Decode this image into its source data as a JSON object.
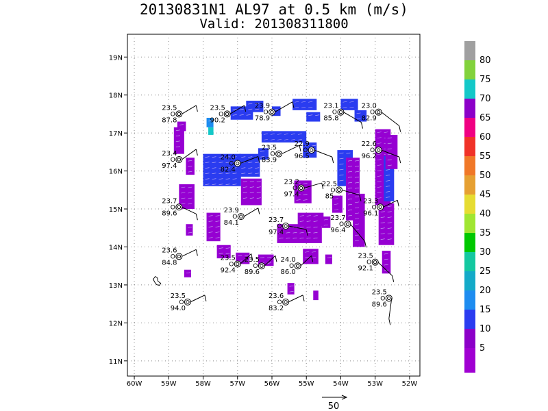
{
  "title_line1": "20130831N1 AL97 at 0.5 km (m/s)",
  "title_line2": "Valid: 201308311800",
  "map": {
    "lon_range": [
      -60.2,
      -51.7
    ],
    "lat_range": [
      10.6,
      19.6
    ],
    "lon_ticks": [
      {
        "v": -60,
        "label": "60W"
      },
      {
        "v": -59,
        "label": "59W"
      },
      {
        "v": -58,
        "label": "58W"
      },
      {
        "v": -57,
        "label": "57W"
      },
      {
        "v": -56,
        "label": "56W"
      },
      {
        "v": -55,
        "label": "55W"
      },
      {
        "v": -54,
        "label": "54W"
      },
      {
        "v": -53,
        "label": "53W"
      },
      {
        "v": -52,
        "label": "52W"
      }
    ],
    "lat_ticks": [
      {
        "v": 11,
        "label": "11N"
      },
      {
        "v": 12,
        "label": "12N"
      },
      {
        "v": 13,
        "label": "13N"
      },
      {
        "v": 14,
        "label": "14N"
      },
      {
        "v": 15,
        "label": "15N"
      },
      {
        "v": 16,
        "label": "16N"
      },
      {
        "v": 17,
        "label": "17N"
      },
      {
        "v": 18,
        "label": "18N"
      },
      {
        "v": 19,
        "label": "19N"
      }
    ],
    "grid": "dotted",
    "colors": {
      "purple": "#9600d2",
      "blue": "#2a3cf0",
      "lightblue": "#1e8cf0",
      "cyan": "#14c8c8"
    },
    "wind_cells": [
      {
        "lon": -57.2,
        "lat": 17.35,
        "w": 0.65,
        "h": 0.35,
        "c": "blue"
      },
      {
        "lon": -56.75,
        "lat": 17.55,
        "w": 0.5,
        "h": 0.3,
        "c": "blue"
      },
      {
        "lon": -56.0,
        "lat": 17.45,
        "w": 0.25,
        "h": 0.25,
        "c": "blue"
      },
      {
        "lon": -55.4,
        "lat": 17.6,
        "w": 0.7,
        "h": 0.3,
        "c": "blue"
      },
      {
        "lon": -55.0,
        "lat": 17.3,
        "w": 0.4,
        "h": 0.25,
        "c": "blue"
      },
      {
        "lon": -54.0,
        "lat": 17.6,
        "w": 0.5,
        "h": 0.3,
        "c": "blue"
      },
      {
        "lon": -53.6,
        "lat": 17.3,
        "w": 0.35,
        "h": 0.3,
        "c": "blue"
      },
      {
        "lon": -58.75,
        "lat": 17.05,
        "w": 0.25,
        "h": 0.25,
        "c": "purple"
      },
      {
        "lon": -57.9,
        "lat": 17.15,
        "w": 0.2,
        "h": 0.25,
        "c": "lightblue"
      },
      {
        "lon": -57.85,
        "lat": 16.95,
        "w": 0.15,
        "h": 0.2,
        "c": "cyan"
      },
      {
        "lon": -58.85,
        "lat": 16.45,
        "w": 0.3,
        "h": 0.7,
        "c": "purple"
      },
      {
        "lon": -58.5,
        "lat": 15.9,
        "w": 0.25,
        "h": 0.45,
        "c": "purple"
      },
      {
        "lon": -58.0,
        "lat": 15.6,
        "w": 1.1,
        "h": 0.85,
        "c": "blue"
      },
      {
        "lon": -56.95,
        "lat": 15.85,
        "w": 0.6,
        "h": 0.6,
        "c": "blue"
      },
      {
        "lon": -56.4,
        "lat": 16.3,
        "w": 0.3,
        "h": 0.3,
        "c": "blue"
      },
      {
        "lon": -56.3,
        "lat": 16.75,
        "w": 1.3,
        "h": 0.3,
        "c": "blue"
      },
      {
        "lon": -55.1,
        "lat": 16.35,
        "w": 0.4,
        "h": 0.4,
        "c": "blue"
      },
      {
        "lon": -56.9,
        "lat": 15.1,
        "w": 0.6,
        "h": 0.7,
        "c": "purple"
      },
      {
        "lon": -58.7,
        "lat": 15.0,
        "w": 0.45,
        "h": 0.65,
        "c": "purple"
      },
      {
        "lon": -58.5,
        "lat": 14.3,
        "w": 0.2,
        "h": 0.3,
        "c": "purple"
      },
      {
        "lon": -57.9,
        "lat": 14.15,
        "w": 0.4,
        "h": 0.75,
        "c": "purple"
      },
      {
        "lon": -57.6,
        "lat": 13.7,
        "w": 0.4,
        "h": 0.35,
        "c": "purple"
      },
      {
        "lon": -57.05,
        "lat": 13.55,
        "w": 0.4,
        "h": 0.3,
        "c": "purple"
      },
      {
        "lon": -56.4,
        "lat": 13.5,
        "w": 0.45,
        "h": 0.3,
        "c": "purple"
      },
      {
        "lon": -55.35,
        "lat": 15.15,
        "w": 0.5,
        "h": 0.6,
        "c": "purple"
      },
      {
        "lon": -55.25,
        "lat": 14.55,
        "w": 0.75,
        "h": 0.35,
        "c": "purple"
      },
      {
        "lon": -55.85,
        "lat": 14.1,
        "w": 1.3,
        "h": 0.5,
        "c": "purple"
      },
      {
        "lon": -55.1,
        "lat": 13.55,
        "w": 0.45,
        "h": 0.4,
        "c": "purple"
      },
      {
        "lon": -55.55,
        "lat": 12.75,
        "w": 0.2,
        "h": 0.3,
        "c": "purple"
      },
      {
        "lon": -54.8,
        "lat": 12.6,
        "w": 0.15,
        "h": 0.25,
        "c": "purple"
      },
      {
        "lon": -54.45,
        "lat": 13.55,
        "w": 0.2,
        "h": 0.25,
        "c": "purple"
      },
      {
        "lon": -54.1,
        "lat": 15.6,
        "w": 0.45,
        "h": 0.95,
        "c": "blue"
      },
      {
        "lon": -53.85,
        "lat": 14.7,
        "w": 0.4,
        "h": 1.65,
        "c": "purple"
      },
      {
        "lon": -53.65,
        "lat": 14.0,
        "w": 0.35,
        "h": 1.4,
        "c": "purple"
      },
      {
        "lon": -54.25,
        "lat": 14.9,
        "w": 0.3,
        "h": 0.45,
        "c": "purple"
      },
      {
        "lon": -54.55,
        "lat": 14.5,
        "w": 0.25,
        "h": 0.3,
        "c": "purple"
      },
      {
        "lon": -53.0,
        "lat": 15.1,
        "w": 0.45,
        "h": 2.0,
        "c": "purple"
      },
      {
        "lon": -52.75,
        "lat": 15.2,
        "w": 0.3,
        "h": 1.2,
        "c": "blue"
      },
      {
        "lon": -52.7,
        "lat": 16.05,
        "w": 0.35,
        "h": 0.9,
        "c": "purple"
      },
      {
        "lon": -52.9,
        "lat": 14.05,
        "w": 0.45,
        "h": 1.1,
        "c": "purple"
      },
      {
        "lon": -52.8,
        "lat": 13.3,
        "w": 0.25,
        "h": 0.6,
        "c": "purple"
      },
      {
        "lon": -58.55,
        "lat": 13.2,
        "w": 0.2,
        "h": 0.2,
        "c": "purple"
      }
    ],
    "stations": [
      {
        "lon": -58.7,
        "lat": 17.5,
        "t": "23.5",
        "d": "87.8",
        "stem": [
          0.5,
          0.25
        ]
      },
      {
        "lon": -57.3,
        "lat": 17.5,
        "t": "23.5",
        "d": "90.2",
        "stem": [
          0.5,
          0.25
        ]
      },
      {
        "lon": -56.0,
        "lat": 17.55,
        "t": "23.9",
        "d": "78.9",
        "stem": [
          0.6,
          0.3
        ]
      },
      {
        "lon": -54.0,
        "lat": 17.55,
        "t": "23.1",
        "d": "85.8",
        "stem": [
          0.6,
          -0.3
        ]
      },
      {
        "lon": -52.9,
        "lat": 17.55,
        "t": "23.0",
        "d": "82.9",
        "stem": [
          0.6,
          -0.4
        ]
      },
      {
        "lon": -58.7,
        "lat": 16.3,
        "t": "23.4",
        "d": "97.4",
        "stem": [
          0.5,
          0.3
        ]
      },
      {
        "lon": -57.0,
        "lat": 16.2,
        "t": "24.0",
        "d": "82.4",
        "stem": [
          0.6,
          0.2
        ]
      },
      {
        "lon": -55.8,
        "lat": 16.45,
        "t": "23.5",
        "d": "83.9",
        "stem": [
          0.6,
          0.25
        ]
      },
      {
        "lon": -54.85,
        "lat": 16.55,
        "t": "22.9",
        "d": "96.5",
        "stem": [
          0.6,
          -0.2
        ]
      },
      {
        "lon": -52.9,
        "lat": 16.55,
        "t": "22.6",
        "d": "96.2",
        "stem": [
          0.6,
          -0.2
        ]
      },
      {
        "lon": -55.15,
        "lat": 15.55,
        "t": "23.2",
        "d": "97.4",
        "stem": [
          0.6,
          0.15
        ]
      },
      {
        "lon": -54.05,
        "lat": 15.5,
        "t": "22.5",
        "d": "85",
        "stem": [
          0.6,
          -0.15
        ]
      },
      {
        "lon": -58.7,
        "lat": 15.05,
        "t": "23.7",
        "d": "89.6",
        "stem": [
          0.5,
          -0.2
        ]
      },
      {
        "lon": -52.85,
        "lat": 15.05,
        "t": "23.3",
        "d": "96.1",
        "stem": [
          0.5,
          0.2
        ]
      },
      {
        "lon": -56.9,
        "lat": 14.8,
        "t": "23.9",
        "d": "84.1",
        "stem": [
          0.5,
          0.25
        ]
      },
      {
        "lon": -55.6,
        "lat": 14.55,
        "t": "23.7",
        "d": "97.4",
        "stem": [
          0.6,
          -0.1
        ]
      },
      {
        "lon": -53.8,
        "lat": 14.6,
        "t": "23.7",
        "d": "96.4",
        "stem": [
          0.5,
          -0.5
        ]
      },
      {
        "lon": -58.7,
        "lat": 13.75,
        "t": "23.6",
        "d": "84.8",
        "stem": [
          0.5,
          0.2
        ]
      },
      {
        "lon": -57.0,
        "lat": 13.55,
        "t": "23.5",
        "d": "92.4",
        "stem": [
          0.4,
          0.3
        ]
      },
      {
        "lon": -56.3,
        "lat": 13.5,
        "t": "23.5",
        "d": "89.6",
        "stem": [
          0.4,
          0.3
        ]
      },
      {
        "lon": -55.25,
        "lat": 13.5,
        "t": "24.0",
        "d": "86.0",
        "stem": [
          0.4,
          0.3
        ]
      },
      {
        "lon": -53.0,
        "lat": 13.6,
        "t": "23.5",
        "d": "92.1",
        "stem": [
          0.5,
          -0.4
        ]
      },
      {
        "lon": -58.45,
        "lat": 12.55,
        "t": "23.5",
        "d": "94.0",
        "stem": [
          0.5,
          0.2
        ]
      },
      {
        "lon": -55.6,
        "lat": 12.55,
        "t": "23.6",
        "d": "83.2",
        "stem": [
          0.5,
          0.2
        ]
      },
      {
        "lon": -52.6,
        "lat": 12.65,
        "t": "23.5",
        "d": "89.6",
        "stem": [
          0.0,
          -0.6
        ]
      }
    ],
    "island": {
      "lon": -59.45,
      "lat": 13.15
    }
  },
  "colorbar": {
    "labels": [
      "80",
      "75",
      "70",
      "65",
      "60",
      "55",
      "50",
      "45",
      "40",
      "35",
      "30",
      "25",
      "20",
      "15",
      "10",
      "5"
    ],
    "colors": [
      "#a0a0a0",
      "#82d23c",
      "#14c8c8",
      "#8c00c8",
      "#f00082",
      "#f03228",
      "#f07828",
      "#e6a032",
      "#e6dc32",
      "#a0e632",
      "#00c800",
      "#14c8a0",
      "#14aac8",
      "#1e8cf0",
      "#2a3cf0",
      "#8c00c8",
      "#a000d2"
    ]
  },
  "reference_vector": {
    "label": "50"
  }
}
